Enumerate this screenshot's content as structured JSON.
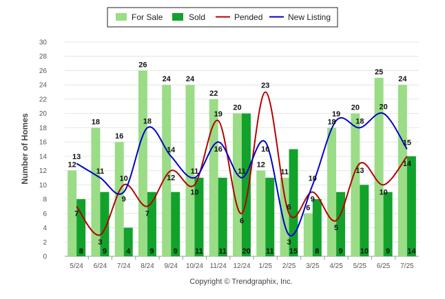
{
  "chart_data": {
    "type": "bar",
    "categories": [
      "5/24",
      "6/24",
      "7/24",
      "8/24",
      "9/24",
      "10/24",
      "11/24",
      "12/24",
      "1/25",
      "2/25",
      "3/25",
      "4/25",
      "5/25",
      "6/25",
      "7/25"
    ],
    "series": [
      {
        "name": "For Sale",
        "kind": "bar",
        "color": "#9bdc86",
        "values": [
          12,
          18,
          16,
          26,
          24,
          24,
          22,
          20,
          12,
          11,
          6,
          18,
          20,
          25,
          24
        ]
      },
      {
        "name": "Sold",
        "kind": "bar",
        "color": "#12a22c",
        "values": [
          8,
          9,
          4,
          9,
          9,
          11,
          11,
          20,
          11,
          15,
          8,
          9,
          10,
          9,
          14
        ]
      },
      {
        "name": "Pended",
        "kind": "line",
        "color": "#b40000",
        "values": [
          7,
          3,
          10,
          7,
          12,
          10,
          19,
          6,
          23,
          6,
          9,
          5,
          13,
          10,
          14
        ]
      },
      {
        "name": "New Listing",
        "kind": "line",
        "color": "#0000cc",
        "values": [
          13,
          11,
          9,
          18,
          14,
          11,
          16,
          11,
          16,
          3,
          10,
          19,
          18,
          20,
          15
        ]
      }
    ],
    "ylabel": "Number of Homes",
    "ylim": [
      0,
      30
    ],
    "yticks": [
      0,
      2,
      4,
      6,
      8,
      10,
      12,
      14,
      16,
      18,
      20,
      22,
      24,
      26,
      28,
      30
    ],
    "grid": true,
    "legend_position": "top-center"
  },
  "credit": "Copyright © Trendgraphix, Inc."
}
